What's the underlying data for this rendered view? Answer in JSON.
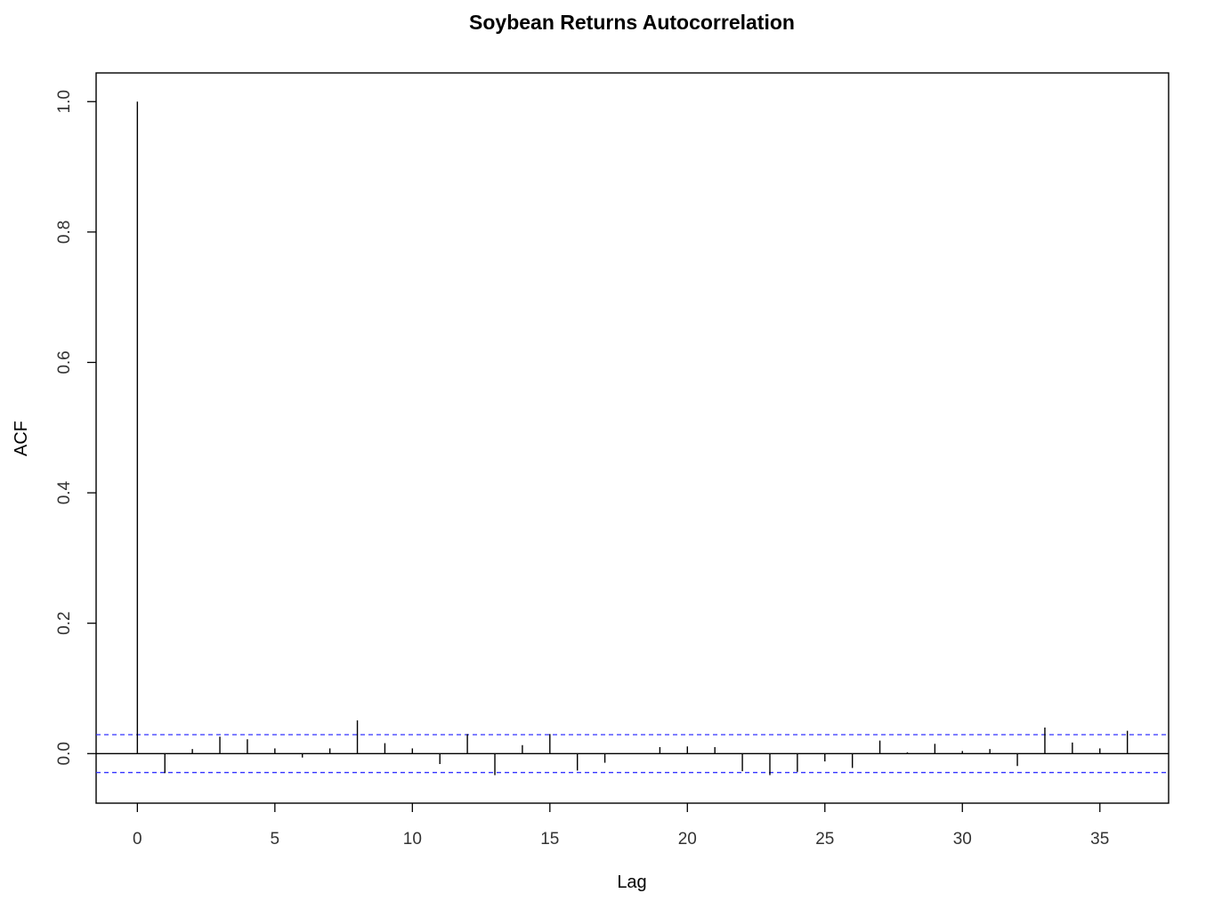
{
  "chart_data": {
    "type": "bar",
    "title": "Soybean Returns Autocorrelation",
    "xlabel": "Lag",
    "ylabel": "ACF",
    "xlim": [
      -1.5,
      37.5
    ],
    "ylim": [
      -0.076,
      1.044
    ],
    "x_ticks": [
      0,
      5,
      10,
      15,
      20,
      25,
      30,
      35
    ],
    "x_tick_labels": [
      "0",
      "5",
      "10",
      "15",
      "20",
      "25",
      "30",
      "35"
    ],
    "y_ticks": [
      0.0,
      0.2,
      0.4,
      0.6,
      0.8,
      1.0
    ],
    "y_tick_labels": [
      "0.0",
      "0.2",
      "0.4",
      "0.6",
      "0.8",
      "1.0"
    ],
    "confidence_bounds": [
      0.029,
      -0.029
    ],
    "lags": [
      0,
      1,
      2,
      3,
      4,
      5,
      6,
      7,
      8,
      9,
      10,
      11,
      12,
      13,
      14,
      15,
      16,
      17,
      18,
      19,
      20,
      21,
      22,
      23,
      24,
      25,
      26,
      27,
      28,
      29,
      30,
      31,
      32,
      33,
      34,
      35,
      36
    ],
    "acf": [
      1.0,
      -0.03,
      0.007,
      0.026,
      0.022,
      0.008,
      -0.006,
      0.008,
      0.051,
      0.016,
      0.008,
      -0.016,
      0.03,
      -0.033,
      0.013,
      0.03,
      -0.026,
      -0.014,
      0.0,
      0.01,
      0.011,
      0.01,
      -0.027,
      -0.033,
      -0.028,
      -0.012,
      -0.022,
      0.02,
      0.002,
      0.015,
      0.004,
      0.007,
      -0.019,
      0.04,
      0.017,
      0.008,
      0.035
    ],
    "grid": false,
    "colors": {
      "bars": "#000000",
      "bounds": "#3333ff",
      "zero_line": "#000000"
    }
  }
}
